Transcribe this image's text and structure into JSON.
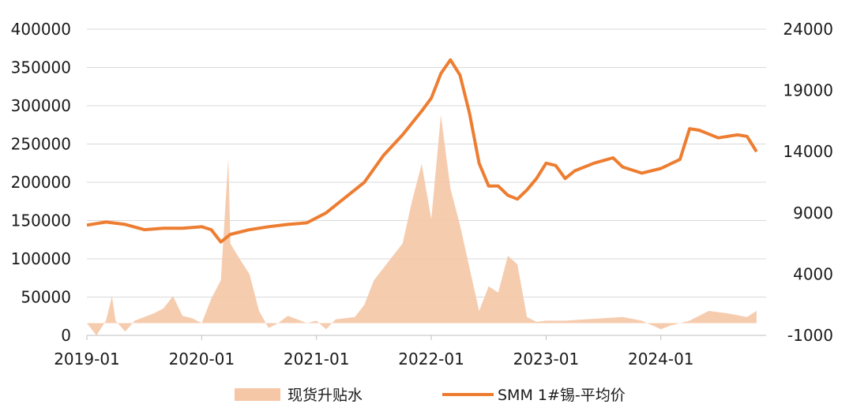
{
  "chart_data": {
    "type": "area+line",
    "title": "",
    "xlabel": "",
    "ylabel_left": "",
    "ylabel_right": "",
    "x_start": "2019-01",
    "x_end": "2024-11",
    "xticks": [
      "2019-01",
      "2020-01",
      "2021-01",
      "2022-01",
      "2023-01",
      "2024-01"
    ],
    "ylim_left": [
      0,
      400000
    ],
    "yticks_left": [
      "0",
      "50000",
      "100000",
      "150000",
      "200000",
      "250000",
      "300000",
      "350000",
      "400000"
    ],
    "ylim_right": [
      -1000,
      24000
    ],
    "yticks_right": [
      "-1000",
      "4000",
      "9000",
      "14000",
      "19000",
      "24000"
    ],
    "grid": "horizontal",
    "legend_position": "bottom",
    "series": [
      {
        "name": "现货升贴水",
        "kind": "area",
        "axis": "right",
        "color": "#f5c7a6",
        "points": [
          [
            "2019-01",
            0
          ],
          [
            "2019-02",
            -1000
          ],
          [
            "2019-03",
            200
          ],
          [
            "2019-03-20",
            2200
          ],
          [
            "2019-04",
            200
          ],
          [
            "2019-05",
            -700
          ],
          [
            "2019-06",
            200
          ],
          [
            "2019-07",
            500
          ],
          [
            "2019-08",
            800
          ],
          [
            "2019-09",
            1200
          ],
          [
            "2019-10",
            2200
          ],
          [
            "2019-11",
            600
          ],
          [
            "2019-12",
            400
          ],
          [
            "2020-01",
            0
          ],
          [
            "2020-02",
            2000
          ],
          [
            "2020-03",
            3500
          ],
          [
            "2020-03-25",
            13500
          ],
          [
            "2020-04",
            6500
          ],
          [
            "2020-05",
            5200
          ],
          [
            "2020-06",
            4000
          ],
          [
            "2020-07",
            1000
          ],
          [
            "2020-08",
            -400
          ],
          [
            "2020-09",
            0
          ],
          [
            "2020-10",
            600
          ],
          [
            "2020-11",
            300
          ],
          [
            "2020-12",
            0
          ],
          [
            "2021-01",
            200
          ],
          [
            "2021-02",
            -500
          ],
          [
            "2021-03",
            300
          ],
          [
            "2021-04",
            400
          ],
          [
            "2021-05",
            500
          ],
          [
            "2021-06",
            1500
          ],
          [
            "2021-07",
            3500
          ],
          [
            "2021-08",
            4500
          ],
          [
            "2021-09",
            5500
          ],
          [
            "2021-10",
            6500
          ],
          [
            "2021-11",
            10000
          ],
          [
            "2021-12",
            13000
          ],
          [
            "2022-01",
            8500
          ],
          [
            "2022-02",
            17000
          ],
          [
            "2022-03",
            11000
          ],
          [
            "2022-04",
            8000
          ],
          [
            "2022-05",
            4500
          ],
          [
            "2022-06",
            1000
          ],
          [
            "2022-07",
            3000
          ],
          [
            "2022-08",
            2500
          ],
          [
            "2022-09",
            5500
          ],
          [
            "2022-10",
            4800
          ],
          [
            "2022-11",
            500
          ],
          [
            "2022-12",
            100
          ],
          [
            "2023-01",
            200
          ],
          [
            "2023-03",
            200
          ],
          [
            "2023-05",
            300
          ],
          [
            "2023-07",
            400
          ],
          [
            "2023-09",
            500
          ],
          [
            "2023-11",
            200
          ],
          [
            "2024-01",
            -500
          ],
          [
            "2024-02",
            -200
          ],
          [
            "2024-04",
            200
          ],
          [
            "2024-06",
            1000
          ],
          [
            "2024-08",
            800
          ],
          [
            "2024-10",
            500
          ],
          [
            "2024-11",
            1000
          ]
        ]
      },
      {
        "name": "SMM 1#锡-平均价",
        "kind": "line",
        "axis": "left",
        "color": "#ed7d31",
        "points": [
          [
            "2019-01",
            144000
          ],
          [
            "2019-03",
            148000
          ],
          [
            "2019-05",
            145000
          ],
          [
            "2019-07",
            138000
          ],
          [
            "2019-09",
            140000
          ],
          [
            "2019-11",
            140000
          ],
          [
            "2020-01",
            142000
          ],
          [
            "2020-02",
            138000
          ],
          [
            "2020-03",
            122000
          ],
          [
            "2020-04",
            132000
          ],
          [
            "2020-06",
            138000
          ],
          [
            "2020-08",
            142000
          ],
          [
            "2020-10",
            145000
          ],
          [
            "2020-12",
            147000
          ],
          [
            "2021-02",
            160000
          ],
          [
            "2021-04",
            180000
          ],
          [
            "2021-06",
            200000
          ],
          [
            "2021-08",
            235000
          ],
          [
            "2021-10",
            262000
          ],
          [
            "2021-12",
            293000
          ],
          [
            "2022-01",
            310000
          ],
          [
            "2022-02",
            342000
          ],
          [
            "2022-03",
            360000
          ],
          [
            "2022-04",
            340000
          ],
          [
            "2022-05",
            290000
          ],
          [
            "2022-06",
            225000
          ],
          [
            "2022-07",
            195000
          ],
          [
            "2022-08",
            195000
          ],
          [
            "2022-09",
            183000
          ],
          [
            "2022-10",
            178000
          ],
          [
            "2022-11",
            190000
          ],
          [
            "2022-12",
            205000
          ],
          [
            "2023-01",
            225000
          ],
          [
            "2023-02",
            222000
          ],
          [
            "2023-03",
            205000
          ],
          [
            "2023-04",
            215000
          ],
          [
            "2023-06",
            225000
          ],
          [
            "2023-08",
            232000
          ],
          [
            "2023-09",
            220000
          ],
          [
            "2023-11",
            212000
          ],
          [
            "2024-01",
            218000
          ],
          [
            "2024-03",
            230000
          ],
          [
            "2024-04",
            270000
          ],
          [
            "2024-05",
            268000
          ],
          [
            "2024-07",
            258000
          ],
          [
            "2024-09",
            262000
          ],
          [
            "2024-10",
            260000
          ],
          [
            "2024-11",
            240000
          ]
        ]
      }
    ]
  }
}
